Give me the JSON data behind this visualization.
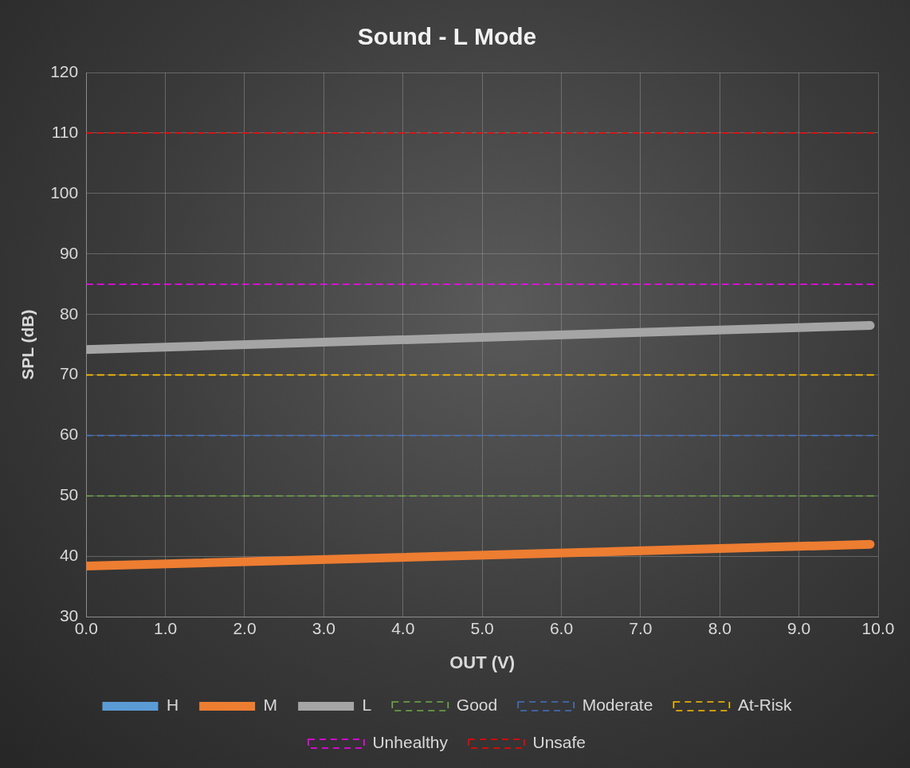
{
  "chart_data": {
    "type": "line",
    "title": "Sound - L Mode",
    "xlabel": "OUT (V)",
    "ylabel": "SPL (dB)",
    "xlim": [
      0,
      10
    ],
    "xticks": [
      {
        "value": 0,
        "label": "0.0"
      },
      {
        "value": 1,
        "label": "1.0"
      },
      {
        "value": 2,
        "label": "2.0"
      },
      {
        "value": 3,
        "label": "3.0"
      },
      {
        "value": 4,
        "label": "4.0"
      },
      {
        "value": 5,
        "label": "5.0"
      },
      {
        "value": 6,
        "label": "6.0"
      },
      {
        "value": 7,
        "label": "7.0"
      },
      {
        "value": 8,
        "label": "8.0"
      },
      {
        "value": 9,
        "label": "9.0"
      },
      {
        "value": 10,
        "label": "10.0"
      }
    ],
    "ylim": [
      30,
      120
    ],
    "yticks": [
      30,
      40,
      50,
      60,
      70,
      80,
      90,
      100,
      110,
      120
    ],
    "grid": true,
    "legend": "bottom",
    "marker": "none",
    "line_style": "solid",
    "series": [
      {
        "name": "H",
        "color": "#5b9bd5"
      },
      {
        "name": "M",
        "color": "#ed7d31",
        "x": [
          0,
          9.9
        ],
        "values": [
          38.4,
          42
        ]
      },
      {
        "name": "L",
        "color": "#a5a5a5",
        "x": [
          0,
          9.9
        ],
        "values": [
          74.2,
          78.2
        ]
      },
      {
        "name": "Good",
        "color": "#70ad47",
        "x": [
          0,
          10
        ],
        "values": [
          50,
          50
        ],
        "line_style": "dashed"
      },
      {
        "name": "Moderate",
        "color": "#4472c4",
        "x": [
          0,
          10
        ],
        "values": [
          60,
          60
        ],
        "line_style": "dashed"
      },
      {
        "name": "At-Risk",
        "color": "#ffc000",
        "x": [
          0,
          10
        ],
        "values": [
          70,
          70
        ],
        "line_style": "dashed"
      },
      {
        "name": "Unhealthy",
        "color": "#ff00ff",
        "x": [
          0,
          10
        ],
        "values": [
          85,
          85
        ],
        "line_style": "dashed"
      },
      {
        "name": "Unsafe",
        "color": "#ff0000",
        "x": [
          0,
          10
        ],
        "values": [
          110,
          110
        ],
        "line_style": "dashed"
      }
    ]
  }
}
